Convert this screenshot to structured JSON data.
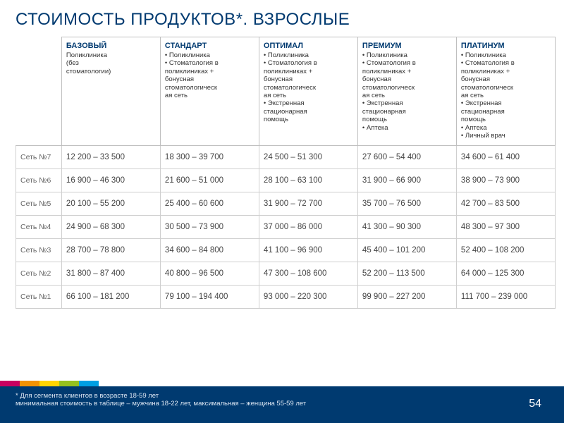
{
  "title": "СТОИМОСТЬ ПРОДУКТОВ*. ВЗРОСЛЫЕ",
  "plans": [
    {
      "name": "БАЗОВЫЙ",
      "desc": [
        "Поликлиника",
        "(без",
        "стоматологии)"
      ]
    },
    {
      "name": "СТАНДАРТ",
      "desc": [
        "• Поликлиника",
        "• Стоматология в",
        "поликлиниках +",
        "бонусная",
        "стоматологическ",
        "ая сеть"
      ]
    },
    {
      "name": "ОПТИМАЛ",
      "desc": [
        "• Поликлиника",
        "• Стоматология в",
        "поликлиниках +",
        "бонусная",
        "стоматологическ",
        "ая сеть",
        "• Экстренная",
        "стационарная",
        "помощь"
      ]
    },
    {
      "name": "ПРЕМИУМ",
      "desc": [
        "• Поликлиника",
        "• Стоматология в",
        "поликлиниках +",
        "бонусная",
        "стоматологическ",
        "ая сеть",
        "• Экстренная",
        "стационарная",
        "помощь",
        "• Аптека"
      ]
    },
    {
      "name": "ПЛАТИНУМ",
      "desc": [
        "• Поликлиника",
        "• Стоматология в",
        "поликлиниках +",
        "бонусная",
        "стоматологическ",
        "ая сеть",
        "• Экстренная",
        "стационарная",
        "помощь",
        "• Аптека",
        "• Личный врач"
      ]
    }
  ],
  "rows": [
    {
      "label": "Сеть №7",
      "cells": [
        "12 200 – 33 500",
        "18 300 – 39 700",
        "24 500 – 51 300",
        "27 600 – 54 400",
        "34 600 – 61 400"
      ]
    },
    {
      "label": "Сеть №6",
      "cells": [
        "16 900 – 46 300",
        "21 600 – 51 000",
        "28 100 – 63 100",
        "31 900 – 66 900",
        "38 900 – 73 900"
      ]
    },
    {
      "label": "Сеть №5",
      "cells": [
        "20 100 – 55 200",
        "25 400 – 60 600",
        "31 900 – 72 700",
        "35 700 – 76 500",
        "42 700 – 83 500"
      ]
    },
    {
      "label": "Сеть №4",
      "cells": [
        "24 900 – 68 300",
        "30 500 – 73 900",
        "37 000 – 86 000",
        "41 300 – 90 300",
        "48 300 – 97 300"
      ]
    },
    {
      "label": "Сеть №3",
      "cells": [
        "28 700 – 78 800",
        "34 600 – 84 800",
        "41 100 – 96 900",
        "45 400 – 101 200",
        "52 400 – 108 200"
      ]
    },
    {
      "label": "Сеть №2",
      "cells": [
        "31 800 – 87 400",
        "40 800 – 96 500",
        "47 300 – 108 600",
        "52 200 – 113 500",
        "64 000 – 125 300"
      ]
    },
    {
      "label": "Сеть №1",
      "cells": [
        "66 100 – 181 200",
        "79 100 – 194 400",
        "93 000 – 220 300",
        "99 900 – 227 200",
        "111 700 – 239 000"
      ]
    }
  ],
  "footnote1": "* Для сегмента клиентов в возрасте 18-59 лет",
  "footnote2": "минимальная стоимость в таблице – мужчина 18-22 лет, максимальная – женщина 55-59 лет",
  "page_number": "54",
  "colors": {
    "brand_blue": "#003a70",
    "border": "#bfbfbf"
  }
}
